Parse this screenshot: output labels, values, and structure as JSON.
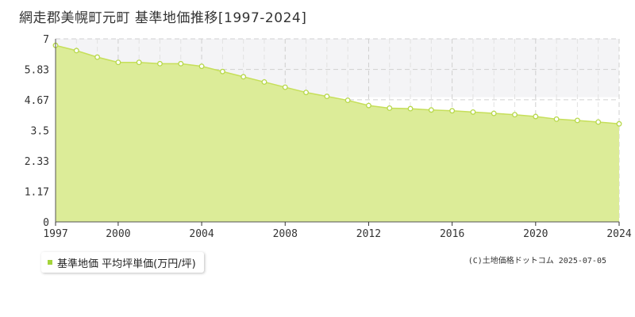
{
  "title": "網走郡美幌町元町 基準地価推移[1997-2024]",
  "copyright": "(C)土地価格ドットコム 2025-07-05",
  "colors": {
    "fill": "#dcec98",
    "line": "#c6df5a",
    "marker": "#b7d84a",
    "legend_swatch": "#a4d43a",
    "band": "#f4f4f6"
  },
  "chart_data": {
    "type": "area",
    "title": "網走郡美幌町元町 基準地価推移[1997-2024]",
    "xlabel": "",
    "ylabel": "",
    "xlim": [
      1997,
      2024
    ],
    "ylim": [
      0,
      7
    ],
    "x_ticks": [
      "1997",
      "2000",
      "2004",
      "2008",
      "2012",
      "2016",
      "2020",
      "2024"
    ],
    "y_ticks": [
      "0",
      "1.17",
      "2.33",
      "3.5",
      "4.67",
      "5.83",
      "7"
    ],
    "grid": true,
    "legend": "bottom-left",
    "series": [
      {
        "name": "基準地価 平均坪単価(万円/坪)",
        "x": [
          1997,
          1998,
          1999,
          2000,
          2001,
          2002,
          2003,
          2004,
          2005,
          2006,
          2007,
          2008,
          2009,
          2010,
          2011,
          2012,
          2013,
          2014,
          2015,
          2016,
          2017,
          2018,
          2019,
          2020,
          2021,
          2022,
          2023,
          2024
        ],
        "values": [
          6.75,
          6.55,
          6.3,
          6.1,
          6.1,
          6.05,
          6.05,
          5.95,
          5.75,
          5.55,
          5.35,
          5.15,
          4.95,
          4.8,
          4.65,
          4.45,
          4.35,
          4.33,
          4.28,
          4.25,
          4.2,
          4.15,
          4.1,
          4.03,
          3.93,
          3.88,
          3.82,
          3.75
        ]
      }
    ]
  }
}
